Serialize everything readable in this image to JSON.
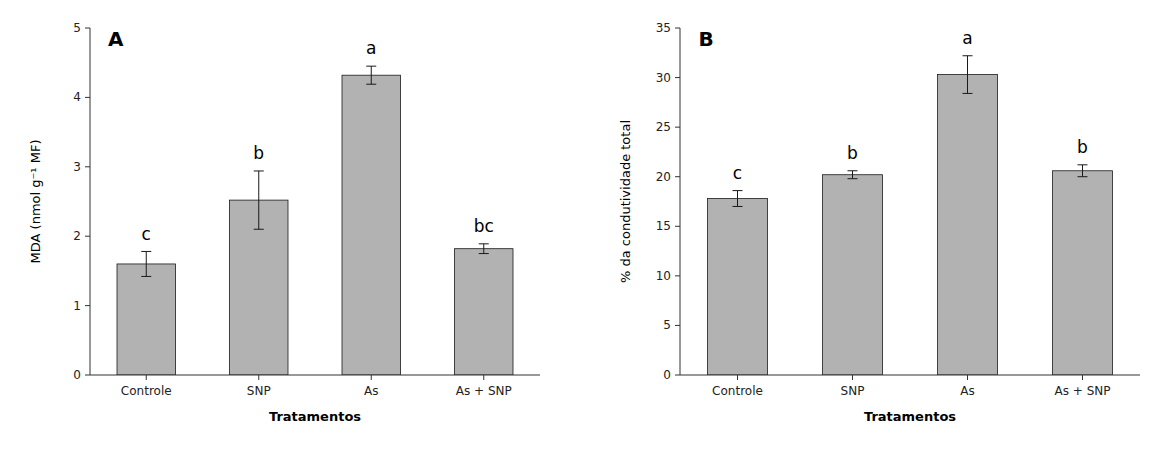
{
  "chart_data": [
    {
      "type": "bar",
      "title": "A",
      "categories": [
        "Controle",
        "SNP",
        "As",
        "As + SNP"
      ],
      "values": [
        1.6,
        2.52,
        4.32,
        1.82
      ],
      "errors": [
        0.18,
        0.42,
        0.13,
        0.07
      ],
      "annotations": [
        "c",
        "b",
        "a",
        "bc"
      ],
      "y_label": "MDA (nmol g⁻¹ MF)",
      "x_label": "Tratamentos",
      "ylim": [
        0,
        5
      ],
      "yticks": [
        0,
        1,
        2,
        3,
        4,
        5
      ],
      "color": "#b2b2b2",
      "grid": false
    },
    {
      "type": "bar",
      "title": "B",
      "categories": [
        "Controle",
        "SNP",
        "As",
        "As + SNP"
      ],
      "values": [
        17.8,
        20.2,
        30.3,
        20.6
      ],
      "errors": [
        0.8,
        0.4,
        1.9,
        0.6
      ],
      "annotations": [
        "c",
        "b",
        "a",
        "b"
      ],
      "y_label": "% da condutividade total",
      "x_label": "Tratamentos",
      "ylim": [
        0,
        35
      ],
      "yticks": [
        0,
        5,
        10,
        15,
        20,
        25,
        30,
        35
      ],
      "color": "#b2b2b2",
      "grid": false
    }
  ]
}
